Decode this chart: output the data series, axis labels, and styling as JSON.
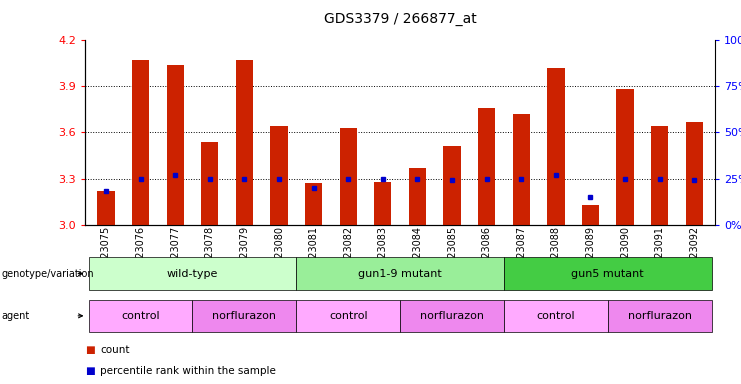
{
  "title": "GDS3379 / 266877_at",
  "samples": [
    "GSM323075",
    "GSM323076",
    "GSM323077",
    "GSM323078",
    "GSM323079",
    "GSM323080",
    "GSM323081",
    "GSM323082",
    "GSM323083",
    "GSM323084",
    "GSM323085",
    "GSM323086",
    "GSM323087",
    "GSM323088",
    "GSM323089",
    "GSM323090",
    "GSM323091",
    "GSM323092"
  ],
  "counts": [
    3.22,
    4.07,
    4.04,
    3.54,
    4.07,
    3.64,
    3.27,
    3.63,
    3.28,
    3.37,
    3.51,
    3.76,
    3.72,
    4.02,
    3.13,
    3.88,
    3.64,
    3.67
  ],
  "percentiles": [
    18,
    25,
    27,
    25,
    25,
    25,
    20,
    25,
    25,
    25,
    24,
    25,
    25,
    27,
    15,
    25,
    25,
    24
  ],
  "ylim_left": [
    3.0,
    4.2
  ],
  "ylim_right": [
    0,
    100
  ],
  "yticks_left": [
    3.0,
    3.3,
    3.6,
    3.9,
    4.2
  ],
  "yticks_right": [
    0,
    25,
    50,
    75,
    100
  ],
  "bar_color": "#cc2200",
  "percentile_color": "#0000cc",
  "genotype_groups": [
    {
      "label": "wild-type",
      "start": 0,
      "end": 5,
      "color": "#ccffcc"
    },
    {
      "label": "gun1-9 mutant",
      "start": 6,
      "end": 11,
      "color": "#99ee99"
    },
    {
      "label": "gun5 mutant",
      "start": 12,
      "end": 17,
      "color": "#44cc44"
    }
  ],
  "agent_groups": [
    {
      "label": "control",
      "start": 0,
      "end": 2,
      "color": "#ffaaff"
    },
    {
      "label": "norflurazon",
      "start": 3,
      "end": 5,
      "color": "#ee88ee"
    },
    {
      "label": "control",
      "start": 6,
      "end": 8,
      "color": "#ffaaff"
    },
    {
      "label": "norflurazon",
      "start": 9,
      "end": 11,
      "color": "#ee88ee"
    },
    {
      "label": "control",
      "start": 12,
      "end": 14,
      "color": "#ffaaff"
    },
    {
      "label": "norflurazon",
      "start": 15,
      "end": 17,
      "color": "#ee88ee"
    }
  ],
  "bar_width": 0.5,
  "tick_label_fontsize": 7,
  "title_fontsize": 10
}
